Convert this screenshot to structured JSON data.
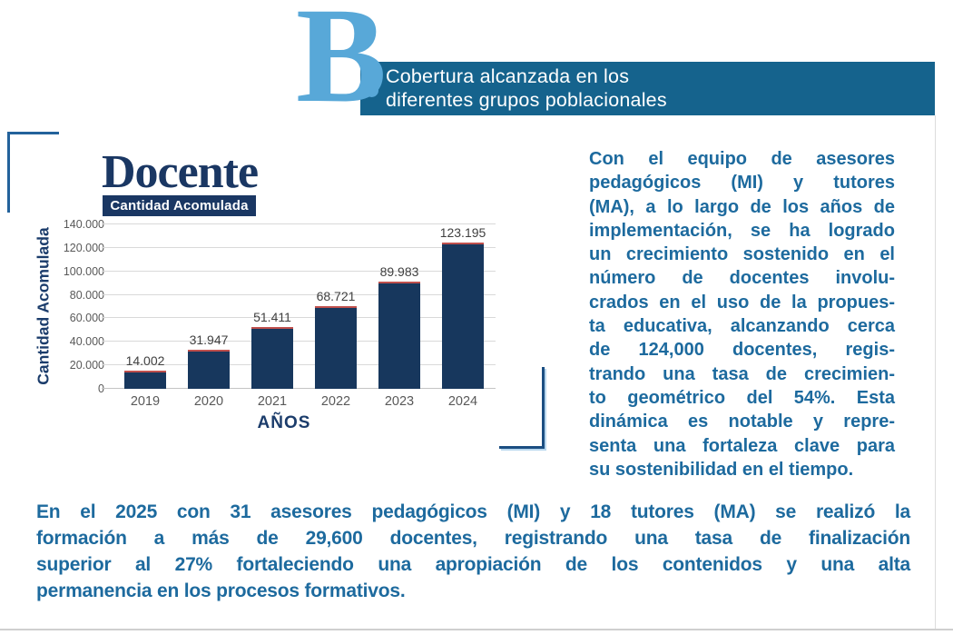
{
  "header": {
    "section_letter": "B",
    "title_line1": "Cobertura alcanzada en los",
    "title_line2": "diferentes grupos poblacionales"
  },
  "chart": {
    "title": "Docente",
    "subtitle": "Cantidad Acomulada",
    "y_axis_title": "Cantidad Acomulada",
    "x_axis_title": "AÑOS"
  },
  "chart_data": {
    "type": "bar",
    "title": "Docente",
    "subtitle": "Cantidad Acomulada",
    "categories": [
      "2019",
      "2020",
      "2021",
      "2022",
      "2023",
      "2024"
    ],
    "values": [
      14002,
      31947,
      51411,
      68721,
      89983,
      123195
    ],
    "value_labels": [
      "14.002",
      "31.947",
      "51.411",
      "68.721",
      "89.983",
      "123.195"
    ],
    "xlabel": "AÑOS",
    "ylabel": "Cantidad Acomulada",
    "ylim": [
      0,
      140000
    ],
    "y_ticks": [
      0,
      20000,
      40000,
      60000,
      80000,
      100000,
      120000,
      140000
    ],
    "y_tick_labels": [
      "0",
      "20.000",
      "40.000",
      "60.000",
      "80.000",
      "100.000",
      "120.000",
      "140.000"
    ],
    "grid": true,
    "legend": "none",
    "bar_color": "#17375D",
    "bar_top_color": "#C0504D"
  },
  "right_paragraph": {
    "lines": [
      "Con el equipo de asesores",
      "pedagógicos (MI) y tutores",
      "(MA), a lo largo de los años de",
      "implementación, se ha logrado",
      "un crecimiento sostenido en el",
      "número de docentes involu-",
      "crados en el uso de la propues-",
      "ta educativa, alcanzando cerca",
      "de 124,000 docentes, regis-",
      "trando una tasa de crecimien-",
      "to geométrico del 54%. Esta",
      "dinámica es notable y repre-",
      "senta una fortaleza clave para",
      "su sostenibilidad en el tiempo."
    ]
  },
  "bottom_paragraph": {
    "lines": [
      "En el 2025 con 31 asesores pedagógicos (MI) y 18 tutores (MA) se realizó la",
      "formación a más de 29,600 docentes, registrando una tasa de finalización",
      "superior al 27% fortaleciendo una apropiación de los contenidos y una alta",
      "permanencia en los procesos formativos."
    ]
  },
  "colors": {
    "banner_bg": "#15638D",
    "accent_light_blue": "#58A8D8",
    "navy": "#1A3763",
    "paragraph_blue": "#1D6A9E",
    "gridline": "#d9d9d9",
    "tick_text": "#595959",
    "bar_navy": "#17375D",
    "bar_top_red": "#C0504D",
    "bracket_blue": "#1B4E82"
  }
}
